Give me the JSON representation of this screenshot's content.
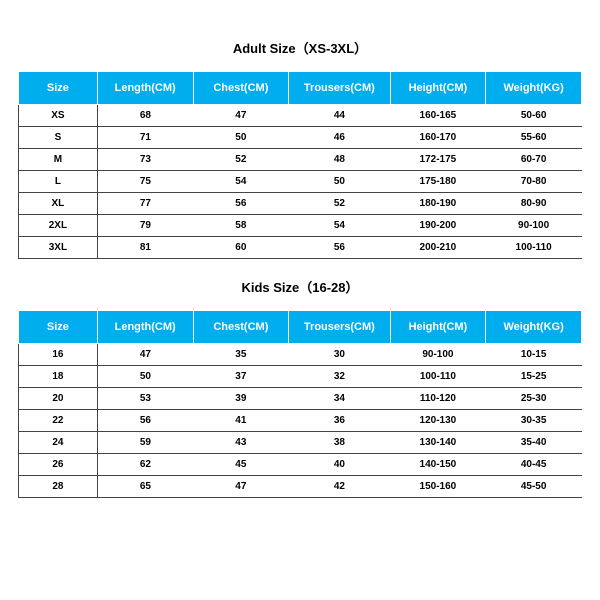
{
  "adult": {
    "title": "Adult Size（XS-3XL）",
    "columns": [
      "Size",
      "Length(CM)",
      "Chest(CM)",
      "Trousers(CM)",
      "Height(CM)",
      "Weight(KG)"
    ],
    "rows": [
      [
        "XS",
        "68",
        "47",
        "44",
        "160-165",
        "50-60"
      ],
      [
        "S",
        "71",
        "50",
        "46",
        "160-170",
        "55-60"
      ],
      [
        "M",
        "73",
        "52",
        "48",
        "172-175",
        "60-70"
      ],
      [
        "L",
        "75",
        "54",
        "50",
        "175-180",
        "70-80"
      ],
      [
        "XL",
        "77",
        "56",
        "52",
        "180-190",
        "80-90"
      ],
      [
        "2XL",
        "79",
        "58",
        "54",
        "190-200",
        "90-100"
      ],
      [
        "3XL",
        "81",
        "60",
        "56",
        "200-210",
        "100-110"
      ]
    ]
  },
  "kids": {
    "title": "Kids Size（16-28）",
    "columns": [
      "Size",
      "Length(CM)",
      "Chest(CM)",
      "Trousers(CM)",
      "Height(CM)",
      "Weight(KG)"
    ],
    "rows": [
      [
        "16",
        "47",
        "35",
        "30",
        "90-100",
        "10-15"
      ],
      [
        "18",
        "50",
        "37",
        "32",
        "100-110",
        "15-25"
      ],
      [
        "20",
        "53",
        "39",
        "34",
        "110-120",
        "25-30"
      ],
      [
        "22",
        "56",
        "41",
        "36",
        "120-130",
        "30-35"
      ],
      [
        "24",
        "59",
        "43",
        "38",
        "130-140",
        "35-40"
      ],
      [
        "26",
        "62",
        "45",
        "40",
        "140-150",
        "40-45"
      ],
      [
        "28",
        "65",
        "47",
        "42",
        "150-160",
        "45-50"
      ]
    ]
  },
  "style": {
    "header_bg": "#00aef0",
    "header_fg": "#ffffff",
    "row_border": "#444444",
    "title_fontsize": 13,
    "header_fontsize": 11,
    "cell_fontsize": 10
  }
}
